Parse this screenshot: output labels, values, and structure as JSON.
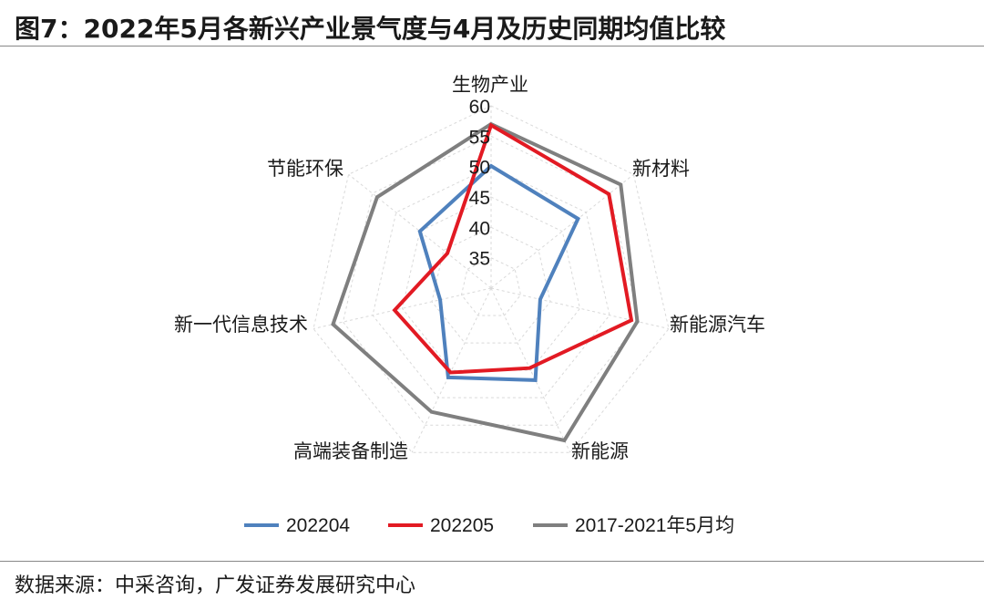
{
  "header": {
    "title": "图7：2022年5月各新兴产业景气度与4月及历史同期均值比较"
  },
  "footer": {
    "source": "数据来源：中采咨询，广发证券发展研究中心"
  },
  "chart_data": {
    "type": "radar",
    "categories": [
      "生物产业",
      "新材料",
      "新能源汽车",
      "新能源",
      "高端装备制造",
      "新一代信息技术",
      "节能环保"
    ],
    "radial_ticks": [
      35,
      40,
      45,
      50,
      55,
      60
    ],
    "rlim": [
      30,
      60
    ],
    "grid": true,
    "legend_position": "bottom",
    "series": [
      {
        "name": "202204",
        "color": "#4f81bd",
        "values": [
          50.1,
          48.3,
          38.3,
          46.8,
          46.3,
          38.6,
          45.0
        ]
      },
      {
        "name": "202205",
        "color": "#e21a23",
        "values": [
          56.8,
          54.8,
          53.7,
          44.6,
          45.4,
          46.3,
          39.2
        ]
      },
      {
        "name": "2017-2021年5月均",
        "color": "#7f7f7f",
        "values": [
          57.0,
          57.3,
          54.7,
          57.8,
          52.6,
          56.7,
          54.0
        ]
      }
    ]
  }
}
